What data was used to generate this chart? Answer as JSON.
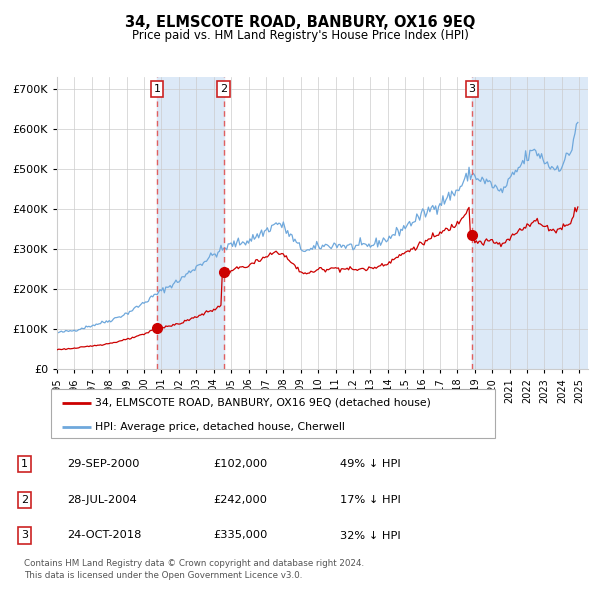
{
  "title": "34, ELMSCOTE ROAD, BANBURY, OX16 9EQ",
  "subtitle": "Price paid vs. HM Land Registry's House Price Index (HPI)",
  "legend_line1": "34, ELMSCOTE ROAD, BANBURY, OX16 9EQ (detached house)",
  "legend_line2": "HPI: Average price, detached house, Cherwell",
  "footer1": "Contains HM Land Registry data © Crown copyright and database right 2024.",
  "footer2": "This data is licensed under the Open Government Licence v3.0.",
  "transactions": [
    {
      "num": 1,
      "date": "29-SEP-2000",
      "price": "£102,000",
      "hpi_diff": "49% ↓ HPI"
    },
    {
      "num": 2,
      "date": "28-JUL-2004",
      "price": "£242,000",
      "hpi_diff": "17% ↓ HPI"
    },
    {
      "num": 3,
      "date": "24-OCT-2018",
      "price": "£335,000",
      "hpi_diff": "32% ↓ HPI"
    }
  ],
  "t1_x": 2000.75,
  "t2_x": 2004.583,
  "t3_x": 2018.833,
  "t1_price": 102000,
  "t2_price": 242000,
  "t3_price": 335000,
  "red_color": "#cc0000",
  "blue_color": "#6fa8dc",
  "bg_color": "#ffffff",
  "grid_color": "#cccccc",
  "shade_color": "#dce9f7",
  "dashed_color": "#e06060",
  "ylim": [
    0,
    730000
  ],
  "xlim_left": 1995.0,
  "xlim_right": 2025.5,
  "yticks": [
    0,
    100000,
    200000,
    300000,
    400000,
    500000,
    600000,
    700000
  ],
  "hpi_seed": 42,
  "red_seed": 123,
  "hpi_noise_scale": 0.018,
  "red_noise_scale": 0.012
}
